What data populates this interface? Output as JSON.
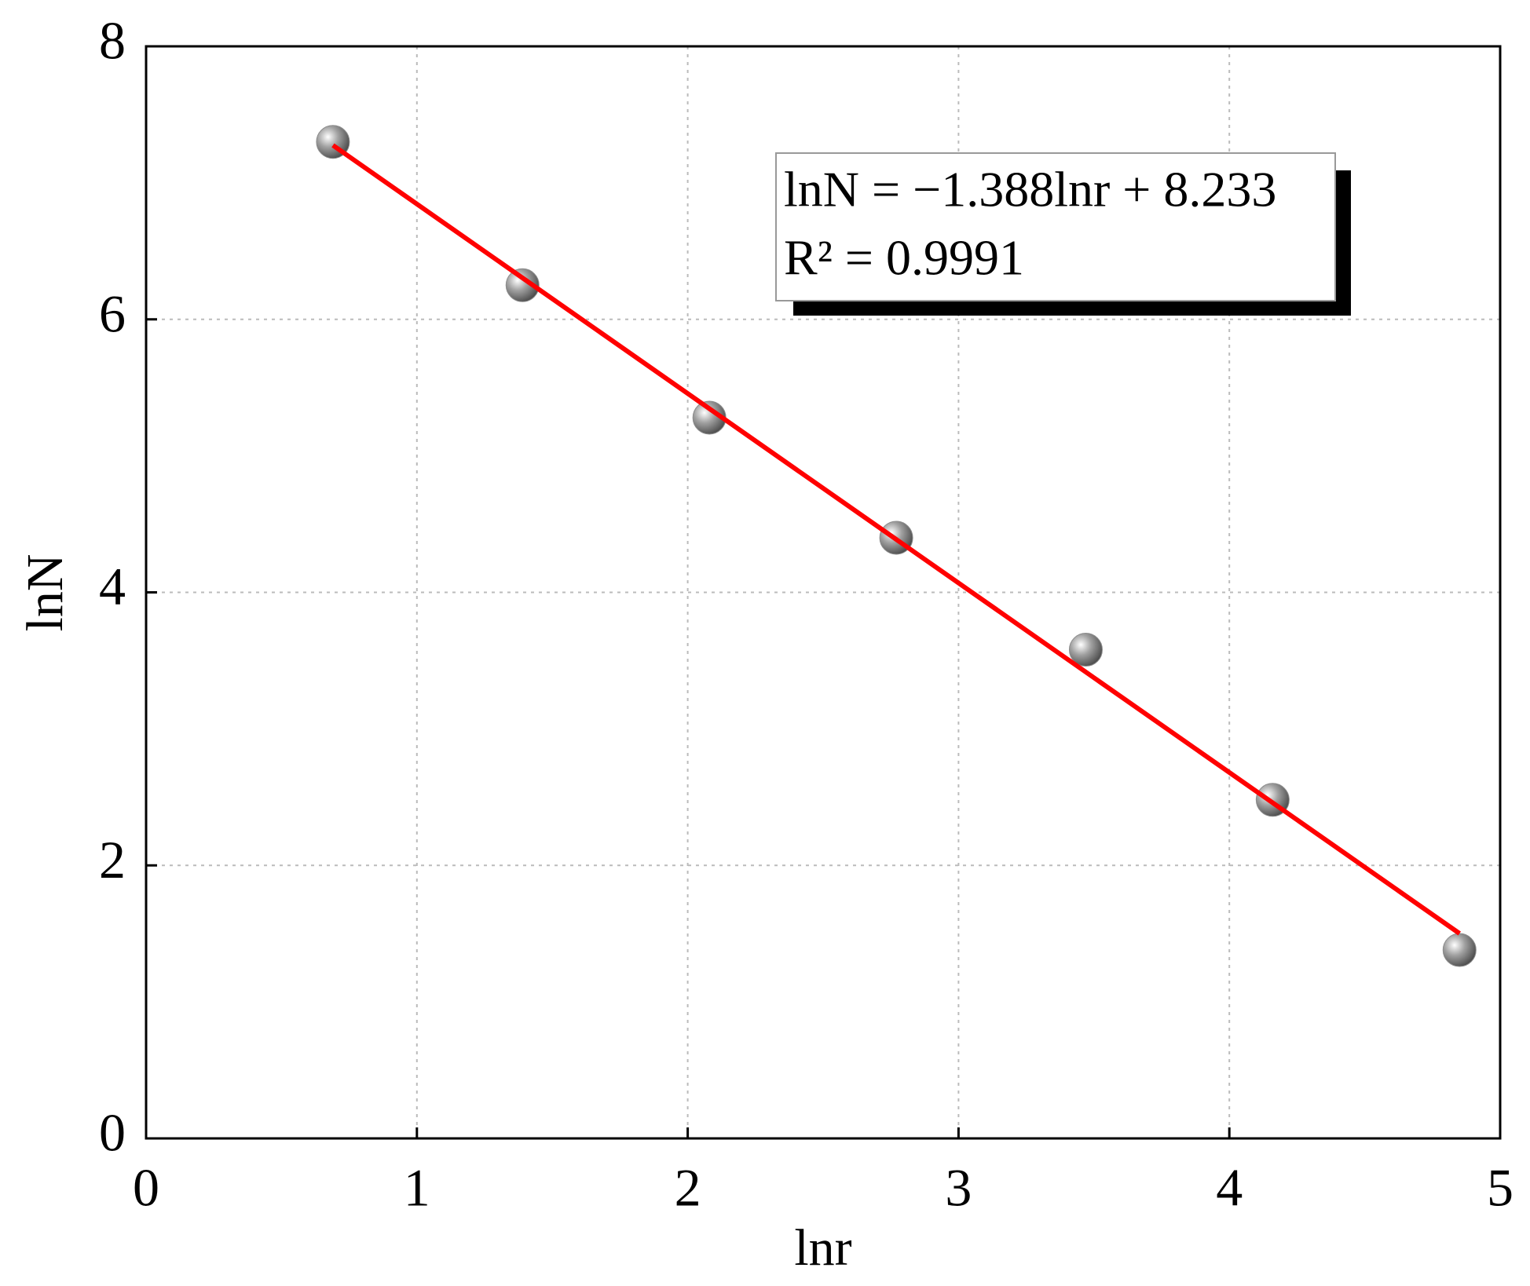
{
  "chart_data": {
    "type": "scatter",
    "x_label": "lnr",
    "y_label": "lnN",
    "xlim": [
      0,
      5
    ],
    "ylim": [
      0,
      8
    ],
    "xticks": [
      0,
      1,
      2,
      3,
      4,
      5
    ],
    "yticks": [
      0,
      2,
      4,
      6,
      8
    ],
    "grid": true,
    "annotations": [
      "lnN = −1.388lnr + 8.233",
      "R² = 0.9991"
    ],
    "series": [
      {
        "kind": "scatter",
        "color": "#8c8c8c",
        "x": [
          0.69,
          1.39,
          2.08,
          2.77,
          3.47,
          4.16,
          4.85
        ],
        "values": [
          7.3,
          6.25,
          5.28,
          4.4,
          3.58,
          2.48,
          1.38
        ]
      },
      {
        "kind": "line",
        "color": "#ff0000",
        "x": [
          0.69,
          4.85
        ],
        "values": [
          7.275,
          1.501
        ]
      }
    ]
  }
}
